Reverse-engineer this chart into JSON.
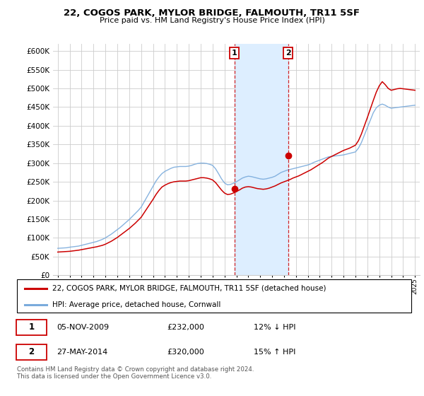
{
  "title": "22, COGOS PARK, MYLOR BRIDGE, FALMOUTH, TR11 5SF",
  "subtitle": "Price paid vs. HM Land Registry's House Price Index (HPI)",
  "ylim": [
    0,
    620000
  ],
  "yticks": [
    0,
    50000,
    100000,
    150000,
    200000,
    250000,
    300000,
    350000,
    400000,
    450000,
    500000,
    550000,
    600000
  ],
  "purchase1_x": 2009.833,
  "purchase1_price": 232000,
  "purchase2_x": 2014.333,
  "purchase2_price": 320000,
  "legend_red": "22, COGOS PARK, MYLOR BRIDGE, FALMOUTH, TR11 5SF (detached house)",
  "legend_blue": "HPI: Average price, detached house, Cornwall",
  "table_row1": [
    "1",
    "05-NOV-2009",
    "£232,000",
    "12% ↓ HPI"
  ],
  "table_row2": [
    "2",
    "27-MAY-2014",
    "£320,000",
    "15% ↑ HPI"
  ],
  "footnote": "Contains HM Land Registry data © Crown copyright and database right 2024.\nThis data is licensed under the Open Government Licence v3.0.",
  "red_color": "#cc0000",
  "blue_color": "#7aabdc",
  "vline_color": "#cc0000",
  "highlight_color": "#ddeeff",
  "grid_color": "#cccccc",
  "xlim_left": 1994.6,
  "xlim_right": 2025.4,
  "hpi_x": [
    1995.0,
    1995.25,
    1995.5,
    1995.75,
    1996.0,
    1996.25,
    1996.5,
    1996.75,
    1997.0,
    1997.25,
    1997.5,
    1997.75,
    1998.0,
    1998.25,
    1998.5,
    1998.75,
    1999.0,
    1999.25,
    1999.5,
    1999.75,
    2000.0,
    2000.25,
    2000.5,
    2000.75,
    2001.0,
    2001.25,
    2001.5,
    2001.75,
    2002.0,
    2002.25,
    2002.5,
    2002.75,
    2003.0,
    2003.25,
    2003.5,
    2003.75,
    2004.0,
    2004.25,
    2004.5,
    2004.75,
    2005.0,
    2005.25,
    2005.5,
    2005.75,
    2006.0,
    2006.25,
    2006.5,
    2006.75,
    2007.0,
    2007.25,
    2007.5,
    2007.75,
    2008.0,
    2008.25,
    2008.5,
    2008.75,
    2009.0,
    2009.25,
    2009.5,
    2009.75,
    2010.0,
    2010.25,
    2010.5,
    2010.75,
    2011.0,
    2011.25,
    2011.5,
    2011.75,
    2012.0,
    2012.25,
    2012.5,
    2012.75,
    2013.0,
    2013.25,
    2013.5,
    2013.75,
    2014.0,
    2014.25,
    2014.5,
    2014.75,
    2015.0,
    2015.25,
    2015.5,
    2015.75,
    2016.0,
    2016.25,
    2016.5,
    2016.75,
    2017.0,
    2017.25,
    2017.5,
    2017.75,
    2018.0,
    2018.25,
    2018.5,
    2018.75,
    2019.0,
    2019.25,
    2019.5,
    2019.75,
    2020.0,
    2020.25,
    2020.5,
    2020.75,
    2021.0,
    2021.25,
    2021.5,
    2021.75,
    2022.0,
    2022.25,
    2022.5,
    2022.75,
    2023.0,
    2023.25,
    2023.5,
    2023.75,
    2024.0,
    2024.25,
    2024.5,
    2024.75,
    2025.0
  ],
  "hpi_y": [
    72000,
    72500,
    73000,
    73500,
    75000,
    76000,
    77000,
    78000,
    80000,
    82000,
    84000,
    86000,
    88000,
    90000,
    93000,
    96000,
    100000,
    105000,
    110000,
    116000,
    122000,
    128000,
    135000,
    142000,
    149000,
    157000,
    165000,
    173000,
    182000,
    196000,
    210000,
    224000,
    238000,
    252000,
    263000,
    272000,
    278000,
    282000,
    286000,
    289000,
    290000,
    291000,
    291000,
    291000,
    292000,
    294000,
    297000,
    299000,
    300000,
    300000,
    299000,
    297000,
    294000,
    285000,
    272000,
    258000,
    247000,
    242000,
    243000,
    246000,
    250000,
    255000,
    260000,
    263000,
    265000,
    264000,
    262000,
    260000,
    258000,
    257000,
    258000,
    260000,
    262000,
    265000,
    270000,
    275000,
    278000,
    281000,
    283000,
    285000,
    287000,
    289000,
    291000,
    293000,
    295000,
    298000,
    302000,
    305000,
    308000,
    311000,
    314000,
    317000,
    318000,
    319000,
    320000,
    321000,
    322000,
    324000,
    326000,
    328000,
    330000,
    340000,
    355000,
    375000,
    395000,
    415000,
    435000,
    448000,
    455000,
    458000,
    455000,
    450000,
    447000,
    448000,
    449000,
    450000,
    451000,
    452000,
    453000,
    454000,
    455000
  ],
  "red_x": [
    1995.0,
    1995.25,
    1995.5,
    1995.75,
    1996.0,
    1996.25,
    1996.5,
    1996.75,
    1997.0,
    1997.25,
    1997.5,
    1997.75,
    1998.0,
    1998.25,
    1998.5,
    1998.75,
    1999.0,
    1999.25,
    1999.5,
    1999.75,
    2000.0,
    2000.25,
    2000.5,
    2000.75,
    2001.0,
    2001.25,
    2001.5,
    2001.75,
    2002.0,
    2002.25,
    2002.5,
    2002.75,
    2003.0,
    2003.25,
    2003.5,
    2003.75,
    2004.0,
    2004.25,
    2004.5,
    2004.75,
    2005.0,
    2005.25,
    2005.5,
    2005.75,
    2006.0,
    2006.25,
    2006.5,
    2006.75,
    2007.0,
    2007.25,
    2007.5,
    2007.75,
    2008.0,
    2008.25,
    2008.5,
    2008.75,
    2009.0,
    2009.25,
    2009.5,
    2009.75,
    2010.0,
    2010.25,
    2010.5,
    2010.75,
    2011.0,
    2011.25,
    2011.5,
    2011.75,
    2012.0,
    2012.25,
    2012.5,
    2012.75,
    2013.0,
    2013.25,
    2013.5,
    2013.75,
    2014.0,
    2014.25,
    2014.5,
    2014.75,
    2015.0,
    2015.25,
    2015.5,
    2015.75,
    2016.0,
    2016.25,
    2016.5,
    2016.75,
    2017.0,
    2017.25,
    2017.5,
    2017.75,
    2018.0,
    2018.25,
    2018.5,
    2018.75,
    2019.0,
    2019.25,
    2019.5,
    2019.75,
    2020.0,
    2020.25,
    2020.5,
    2020.75,
    2021.0,
    2021.25,
    2021.5,
    2021.75,
    2022.0,
    2022.25,
    2022.5,
    2022.75,
    2023.0,
    2023.25,
    2023.5,
    2023.75,
    2024.0,
    2024.25,
    2024.5,
    2024.75,
    2025.0
  ],
  "red_y": [
    62000,
    62500,
    63000,
    63500,
    64000,
    65000,
    66000,
    67000,
    68500,
    70000,
    71500,
    73000,
    74500,
    76000,
    78000,
    80000,
    83000,
    87000,
    91000,
    96000,
    101000,
    107000,
    113000,
    119000,
    125000,
    132000,
    139000,
    147000,
    155000,
    167000,
    179000,
    191000,
    203000,
    216000,
    227000,
    236000,
    241000,
    245000,
    248000,
    250000,
    251000,
    252000,
    252000,
    252000,
    253000,
    255000,
    257000,
    259000,
    261000,
    261000,
    260000,
    258000,
    255000,
    248000,
    238000,
    228000,
    220000,
    216000,
    217000,
    220000,
    224000,
    228000,
    233000,
    236000,
    237000,
    236000,
    234000,
    232000,
    231000,
    230000,
    231000,
    233000,
    236000,
    239000,
    243000,
    247000,
    250000,
    253000,
    256000,
    260000,
    263000,
    266000,
    270000,
    274000,
    278000,
    282000,
    287000,
    292000,
    297000,
    302000,
    308000,
    314000,
    318000,
    322000,
    326000,
    330000,
    334000,
    337000,
    340000,
    344000,
    348000,
    360000,
    378000,
    400000,
    422000,
    445000,
    468000,
    490000,
    507000,
    518000,
    510000,
    500000,
    495000,
    497000,
    499000,
    500000,
    499000,
    498000,
    497000,
    496000,
    495000
  ]
}
